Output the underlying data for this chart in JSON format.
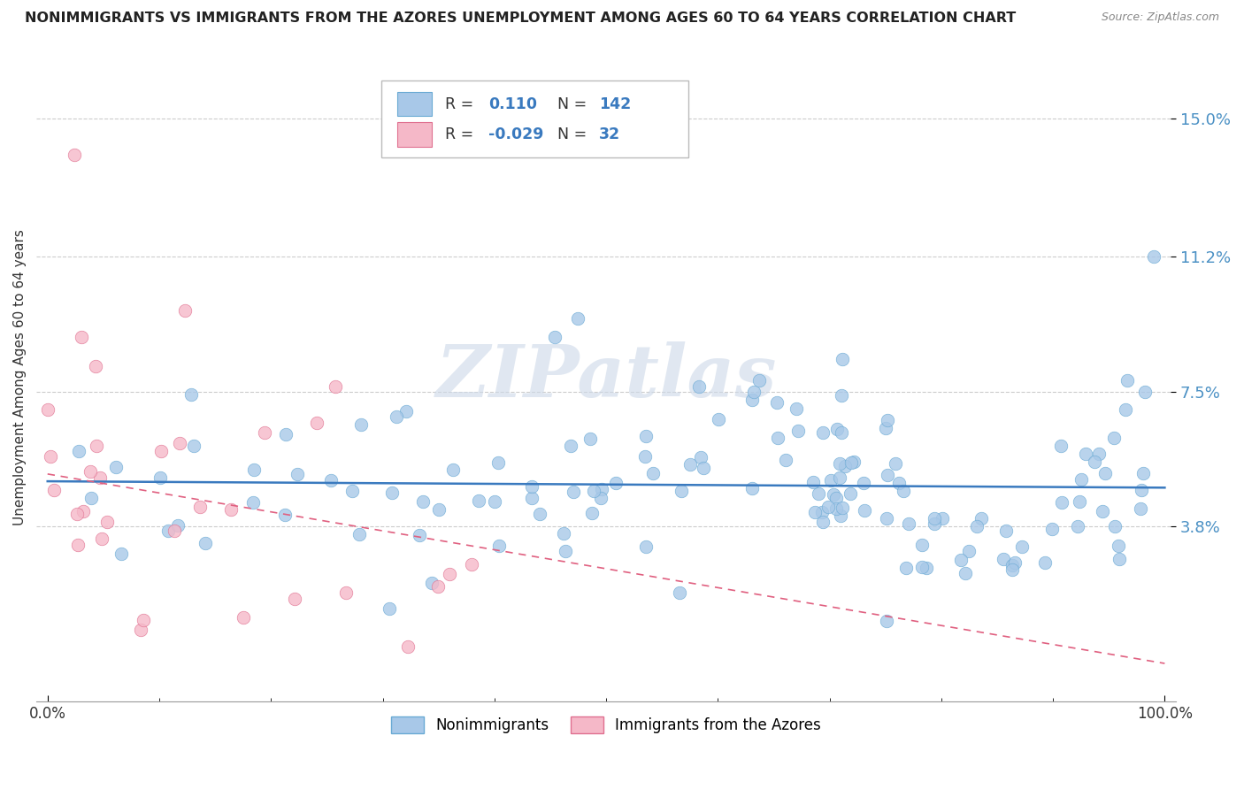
{
  "title": "NONIMMIGRANTS VS IMMIGRANTS FROM THE AZORES UNEMPLOYMENT AMONG AGES 60 TO 64 YEARS CORRELATION CHART",
  "source": "Source: ZipAtlas.com",
  "ylabel": "Unemployment Among Ages 60 to 64 years",
  "xlim": [
    -0.01,
    1.01
  ],
  "ylim": [
    -0.01,
    0.168
  ],
  "yticks": [
    0.038,
    0.075,
    0.112,
    0.15
  ],
  "ytick_labels": [
    "3.8%",
    "7.5%",
    "11.2%",
    "15.0%"
  ],
  "xticks": [
    0.0,
    1.0
  ],
  "xtick_labels": [
    "0.0%",
    "100.0%"
  ],
  "nonimm_color": "#a8c8e8",
  "imm_color": "#f5b8c8",
  "nonimm_edge_color": "#6aaad4",
  "imm_edge_color": "#e07090",
  "trend_nonimm_color": "#3a7abf",
  "trend_imm_color": "#e06080",
  "watermark_color": "#ccd8e8",
  "legend_label_nonimm": "Nonimmigrants",
  "legend_label_imm": "Immigrants from the Azores",
  "nonimm_R": "0.110",
  "nonimm_N": "142",
  "imm_R": "-0.029",
  "imm_N": "32"
}
